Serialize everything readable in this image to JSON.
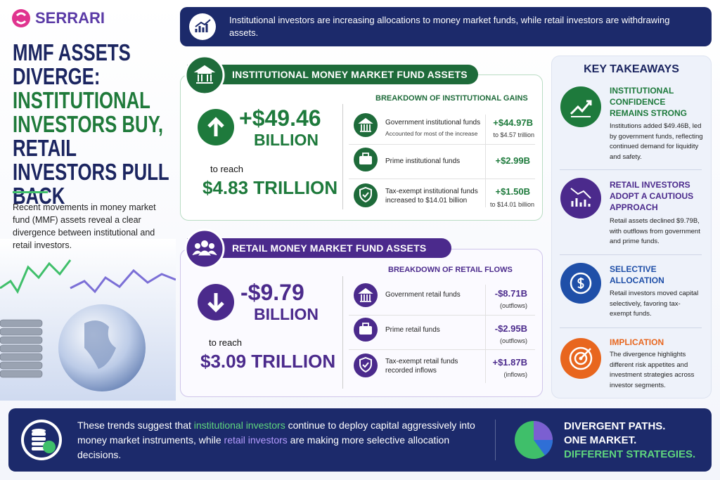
{
  "brand": "SERRARI",
  "headline": {
    "lead": "MMF ASSETS DIVERGE:",
    "green": "INSTITUTIONAL INVESTORS BUY,",
    "navy": "RETAIL INVESTORS PULL BACK"
  },
  "intro": "Recent movements in money market fund (MMF) assets reveal a clear divergence between institutional and retail investors.",
  "banner": "Institutional investors are increasing allocations to money market funds, while retail investors are withdrawing assets.",
  "institutional": {
    "header": "INSTITUTIONAL MONEY MARKET FUND ASSETS",
    "change": "+$49.46",
    "unit": "BILLION",
    "reach_label": "to reach",
    "reach": "$4.83 TRILLION",
    "breakdown_title": "BREAKDOWN OF INSTITUTIONAL GAINS",
    "items": [
      {
        "label": "Government institutional funds",
        "sublabel": "Accounted for most of the increase",
        "value": "+$44.97B",
        "note": "to $4.57 trillion"
      },
      {
        "label": "Prime institutional funds",
        "value": "+$2.99B"
      },
      {
        "label": "Tax-exempt institutional funds increased to $14.01 billion",
        "value": "+$1.50B",
        "note": "to $14.01 billion"
      }
    ]
  },
  "retail": {
    "header": "RETAIL MONEY MARKET FUND ASSETS",
    "change": "-$9.79",
    "unit": "BILLION",
    "reach_label": "to reach",
    "reach": "$3.09 TRILLION",
    "breakdown_title": "BREAKDOWN OF RETAIL FLOWS",
    "items": [
      {
        "label": "Government retail funds",
        "value": "-$8.71B",
        "note": "(outflows)"
      },
      {
        "label": "Prime retail funds",
        "value": "-$2.95B",
        "note": "(outflows)"
      },
      {
        "label": "Tax-exempt retail funds recorded inflows",
        "value": "+$1.87B",
        "note": "(inflows)"
      }
    ]
  },
  "takeaways": {
    "title": "KEY TAKEAWAYS",
    "items": [
      {
        "heading": "INSTITUTIONAL CONFIDENCE REMAINS STRONG",
        "text": "Institutions added $49.46B, led by government funds, reflecting continued demand for liquidity and safety."
      },
      {
        "heading": "RETAIL INVESTORS ADOPT A CAUTIOUS APPROACH",
        "text": "Retail assets declined $9.79B, with outflows from government and prime funds."
      },
      {
        "heading": "SELECTIVE ALLOCATION",
        "text": "Retail investors moved capital selectively, favoring tax-exempt funds."
      },
      {
        "heading": "IMPLICATION",
        "text": "The divergence highlights different risk appetites and investment strategies across investor segments."
      }
    ]
  },
  "footer": {
    "segments": [
      "These trends suggest that ",
      "institutional investors",
      " continue to deploy capital aggressively into money market instruments, while ",
      "retail investors",
      " are making more selective allocation decisions."
    ],
    "tagline": [
      "DIVERGENT PATHS.",
      "ONE MARKET.",
      "DIFFERENT STRATEGIES."
    ]
  }
}
